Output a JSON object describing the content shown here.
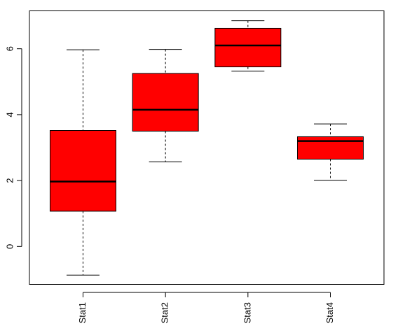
{
  "chart_data": {
    "type": "boxplot",
    "title": "",
    "xlabel": "",
    "ylabel": "",
    "ylim": [
      -1.15,
      7.15
    ],
    "y_ticks": [
      0,
      2,
      4,
      6
    ],
    "y_tick_labels": [
      "0",
      "2",
      "4",
      "6"
    ],
    "grid": false,
    "box_color": "#ff0000",
    "categories": [
      "Stat1",
      "Stat2",
      "Stat3",
      "Stat4"
    ],
    "boxes": [
      {
        "category": "Stat1",
        "min": -0.87,
        "q1": 1.07,
        "median": 1.97,
        "q3": 3.52,
        "max": 5.97
      },
      {
        "category": "Stat2",
        "min": 2.57,
        "q1": 3.5,
        "median": 4.15,
        "q3": 5.25,
        "max": 5.98
      },
      {
        "category": "Stat3",
        "min": 5.32,
        "q1": 5.45,
        "median": 6.1,
        "q3": 6.62,
        "max": 6.85
      },
      {
        "category": "Stat4",
        "min": 2.01,
        "q1": 2.65,
        "median": 3.2,
        "q3": 3.33,
        "max": 3.72
      }
    ]
  }
}
